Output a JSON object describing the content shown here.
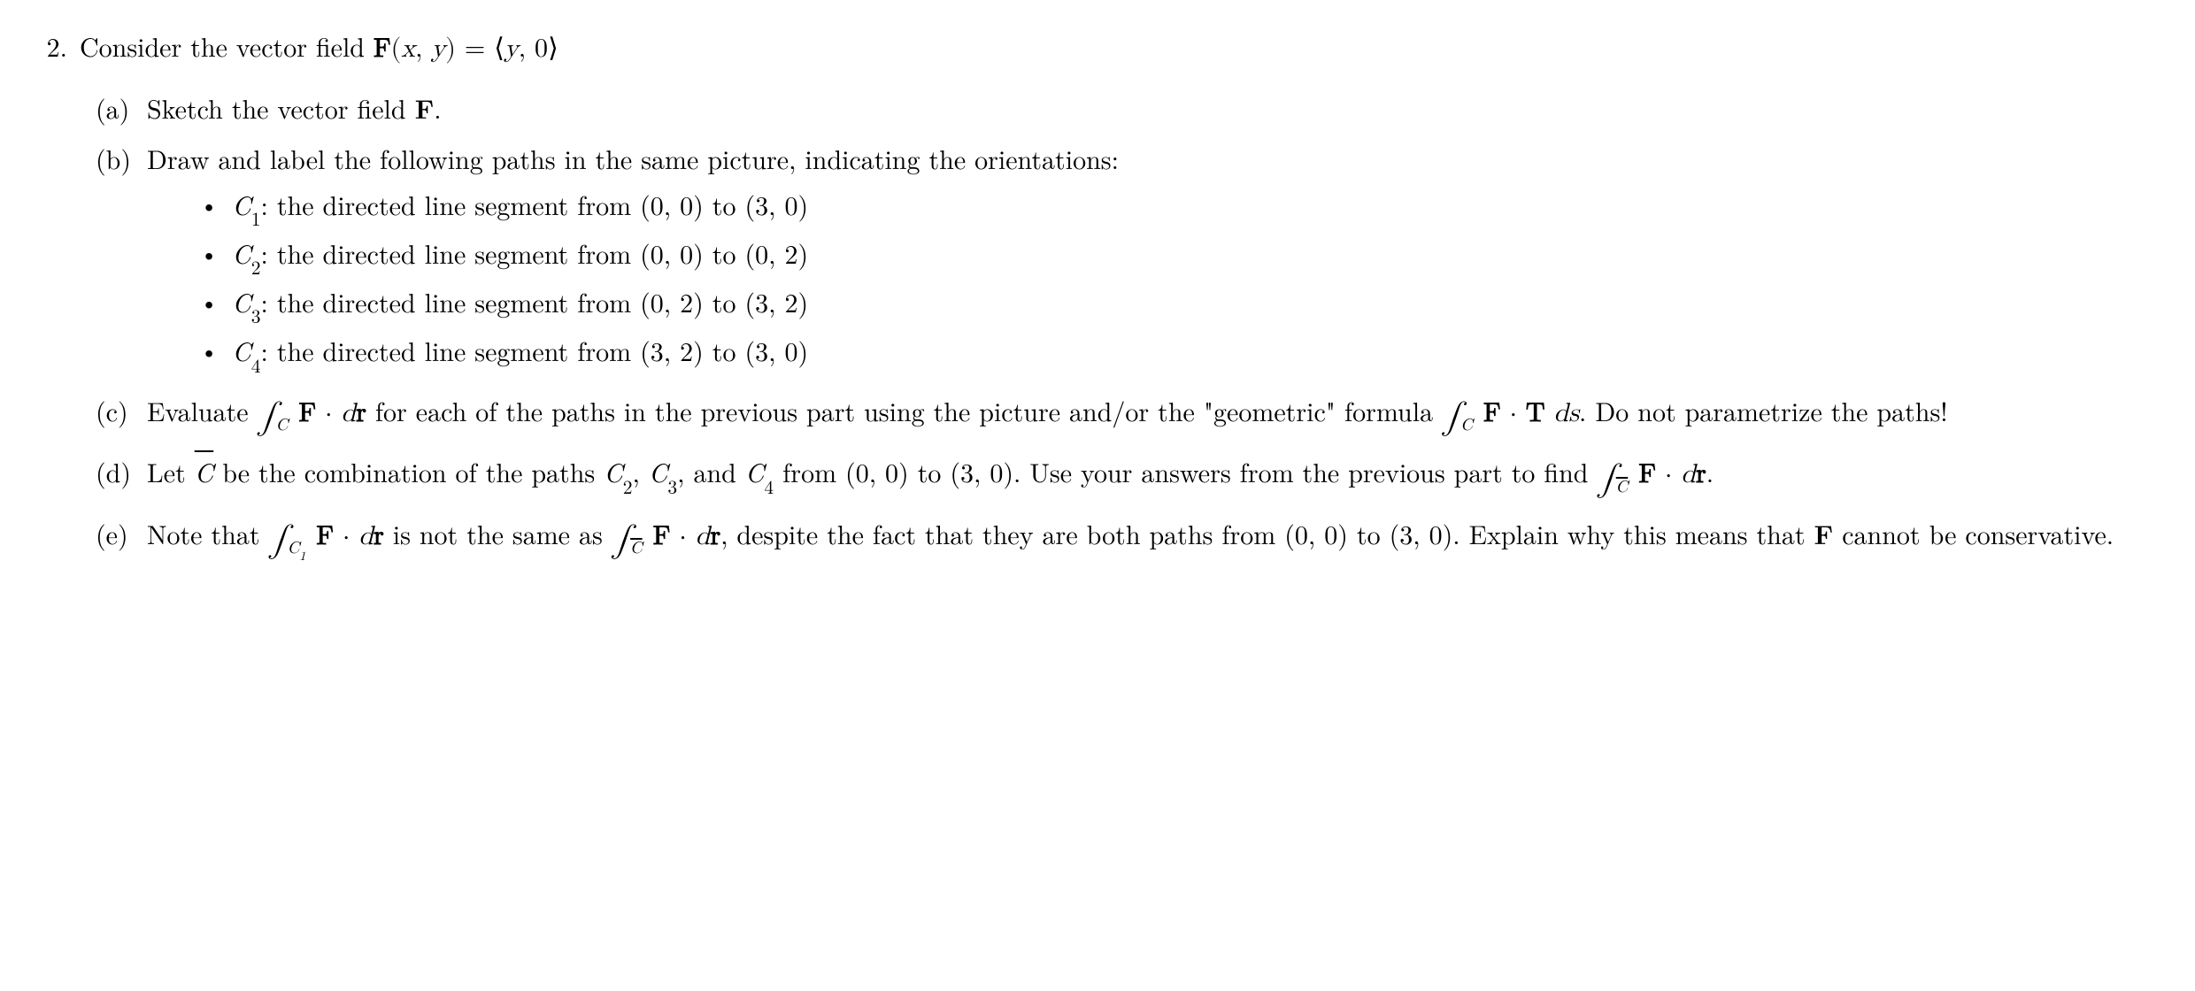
{
  "problem": {
    "number": "2.",
    "stem_prefix": "Consider the vector field ",
    "stem_formula": "F(x, y) = ⟨y, 0⟩",
    "parts": [
      {
        "label": "(a)",
        "text_prefix": "Sketch the vector field ",
        "F": "F",
        "text_suffix": "."
      },
      {
        "label": "(b)",
        "intro": "Draw and label the following paths in the same picture, indicating the orientations:",
        "bullets": [
          {
            "C": "C",
            "sub": "1",
            "rest": ": the directed line segment from (0, 0) to (3, 0)"
          },
          {
            "C": "C",
            "sub": "2",
            "rest": ": the directed line segment from (0, 0) to (0, 2)"
          },
          {
            "C": "C",
            "sub": "3",
            "rest": ": the directed line segment from (0, 2) to (3, 2)"
          },
          {
            "C": "C",
            "sub": "4",
            "rest": ": the directed line segment from (3, 2) to (3, 0)"
          }
        ]
      },
      {
        "label": "(c)",
        "pre": "Evaluate ",
        "integral1_sub": "C",
        "integrand1_F": "F",
        "integrand1_dot": " · ",
        "integrand1_dr": "dr",
        "mid1": " for each of the paths in the previous part using the picture and/or the \"geometric\" formula ",
        "integral2_sub": "C",
        "integrand2_F": "F",
        "integrand2_dot": " · ",
        "integrand2_T": "T",
        "integrand2_ds": " ds",
        "end": ". Do not parametrize the paths!"
      },
      {
        "label": "(d)",
        "pre": "Let ",
        "Cbar": "C",
        "mid1": " be the combination of the paths ",
        "C2": "C",
        "C2sub": "2",
        "comma1": ", ",
        "C3": "C",
        "C3sub": "3",
        "comma2": ", and ",
        "C4": "C",
        "C4sub": "4",
        "mid2": " from (0, 0) to (3, 0). Use your answers from the previous part to find ",
        "intsub": "C",
        "F": "F",
        "dot": " · ",
        "dr": "dr",
        "end": "."
      },
      {
        "label": "(e)",
        "pre": "Note that ",
        "int1sub": "C",
        "int1subsub": "1",
        "F1": "F",
        "dot1": " · ",
        "dr1": "dr",
        "mid1": " is not the same as ",
        "int2sub": "C",
        "F2": "F",
        "dot2": " · ",
        "dr2": "dr",
        "mid2": ", despite the fact that they are both paths from (0, 0) to (3, 0). Explain why this means that ",
        "Fend": "F",
        "end": " cannot be conservative."
      }
    ]
  }
}
